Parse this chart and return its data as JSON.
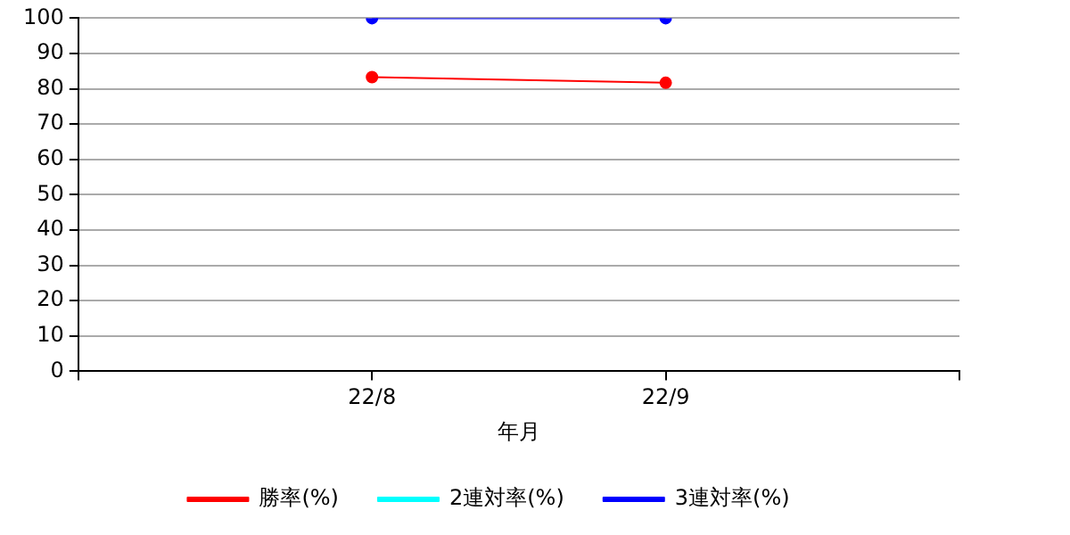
{
  "chart_data": {
    "type": "line",
    "xlabel": "年月",
    "categories": [
      null,
      "22/8",
      "22/9",
      null
    ],
    "series": [
      {
        "name": "勝率(%)",
        "color": "#ff0000",
        "values": [
          null,
          83.3,
          81.7,
          null
        ]
      },
      {
        "name": "2連対率(%)",
        "color": "#00ffff",
        "values": [
          null,
          null,
          null,
          null
        ]
      },
      {
        "name": "3連対率(%)",
        "color": "#0000ff",
        "values": [
          null,
          100,
          100,
          null
        ]
      }
    ],
    "ylim": [
      0,
      100
    ],
    "yticks": [
      0,
      10,
      20,
      30,
      40,
      50,
      60,
      70,
      80,
      90,
      100
    ],
    "grid": "y",
    "legend": "bottom",
    "marker": "circle",
    "line_style": "solid"
  }
}
